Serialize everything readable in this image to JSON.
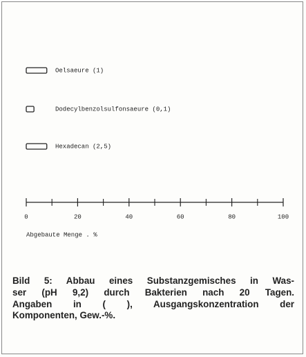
{
  "chart_data": {
    "type": "hbar",
    "categories": [
      "Oelsaeure (1)",
      "Dodecylbenzolsulfonsaeure (0,1)",
      "Hexadecan (2,5)"
    ],
    "values": [
      8,
      3,
      8
    ],
    "color": "none",
    "xlim": [
      0,
      100
    ],
    "xticks": [
      0,
      20,
      40,
      60,
      80,
      100
    ],
    "xminor_ticks": [
      10,
      30,
      50,
      70,
      90
    ],
    "xlabel": "Abgebaute Menge . %",
    "caption": [
      "Bild 5: Abbau eines Substanzgemisches in Was-",
      "ser (pH 9,2) durch Bakterien nach 20 Tagen.",
      "Angaben in ( ), Ausgangskonzentration der",
      "Komponenten, Gew.-%."
    ]
  }
}
